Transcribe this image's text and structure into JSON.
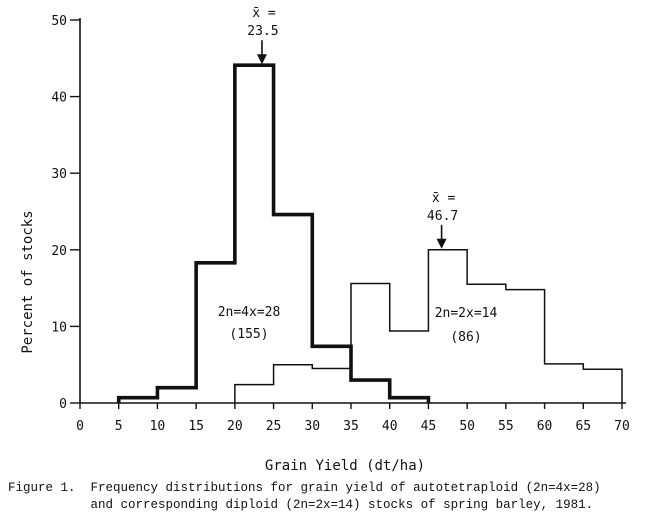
{
  "chart_data": {
    "type": "histogram",
    "xlabel": "Grain Yield (dt/ha)",
    "ylabel": "Percent of stocks",
    "xlim": [
      0,
      70
    ],
    "ylim": [
      0,
      50
    ],
    "x_ticks": [
      "0",
      "5",
      "10",
      "15",
      "20",
      "25",
      "30",
      "35",
      "40",
      "45",
      "50",
      "55",
      "60",
      "65",
      "70"
    ],
    "y_ticks": [
      "0",
      "10",
      "20",
      "30",
      "40",
      "50"
    ],
    "grid": false,
    "series": [
      {
        "name": "2n=4x=28",
        "count_label": "(155)",
        "style": "thick",
        "bins": [
          {
            "from": 5,
            "to": 10,
            "value": 0.7
          },
          {
            "from": 10,
            "to": 15,
            "value": 2.0
          },
          {
            "from": 15,
            "to": 20,
            "value": 18.3
          },
          {
            "from": 20,
            "to": 25,
            "value": 44.1
          },
          {
            "from": 25,
            "to": 30,
            "value": 24.6
          },
          {
            "from": 30,
            "to": 35,
            "value": 7.4
          },
          {
            "from": 35,
            "to": 40,
            "value": 3.0
          },
          {
            "from": 40,
            "to": 45,
            "value": 0.7
          }
        ],
        "mean": {
          "label_line1": "x̄ =",
          "label_line2": "23.5",
          "value": 23.5,
          "y": 44.1
        }
      },
      {
        "name": "2n=2x=14",
        "count_label": "(86)",
        "style": "thin",
        "bins": [
          {
            "from": 20,
            "to": 25,
            "value": 2.4
          },
          {
            "from": 25,
            "to": 30,
            "value": 5.0
          },
          {
            "from": 30,
            "to": 35,
            "value": 4.5
          },
          {
            "from": 35,
            "to": 40,
            "value": 15.6
          },
          {
            "from": 40,
            "to": 45,
            "value": 9.4
          },
          {
            "from": 45,
            "to": 50,
            "value": 20.0
          },
          {
            "from": 50,
            "to": 55,
            "value": 15.5
          },
          {
            "from": 55,
            "to": 60,
            "value": 14.8
          },
          {
            "from": 60,
            "to": 65,
            "value": 5.1
          },
          {
            "from": 65,
            "to": 70,
            "value": 4.4
          }
        ],
        "mean": {
          "label_line1": "x̄ =",
          "label_line2": "46.7",
          "value": 46.7,
          "y": 20.0
        }
      }
    ]
  },
  "caption": {
    "line1": "Figure 1.  Frequency distributions for grain yield of autotetraploid (2n=4x=28)",
    "line2": "           and corresponding diploid (2n=2x=14) stocks of spring barley, 1981."
  }
}
